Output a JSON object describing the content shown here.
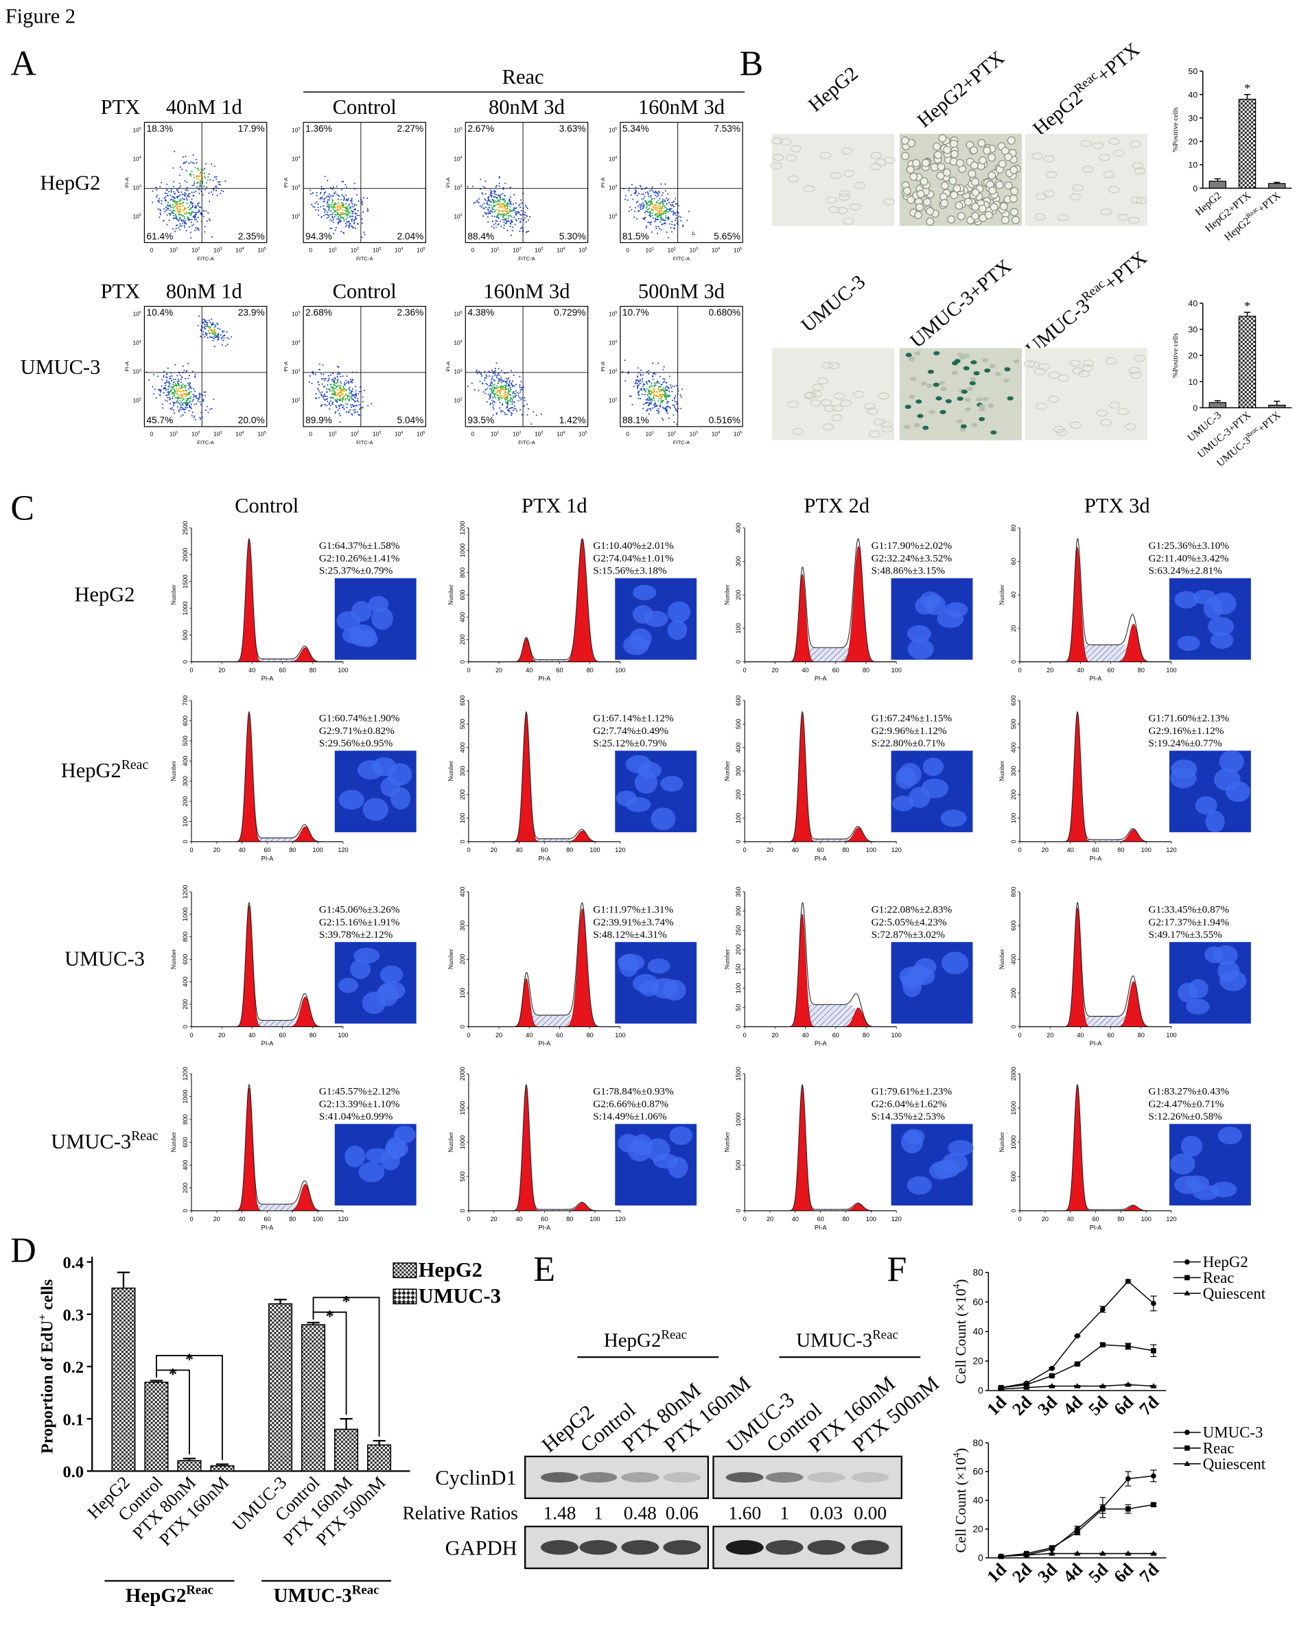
{
  "figure_title": "Figure 2",
  "panel_labels": {
    "a": "A",
    "b": "B",
    "c": "C",
    "d": "D",
    "e": "E",
    "f": "F"
  },
  "panel_a": {
    "group_header": "Reac",
    "axes": {
      "xlabel": "FITC-A",
      "ylabel": "PI-A",
      "xticks": [
        "0",
        [
          "10",
          "1"
        ],
        [
          "10",
          "2"
        ],
        [
          "10",
          "3"
        ],
        [
          "10",
          "4"
        ],
        [
          "10",
          "5"
        ]
      ],
      "yticks": [
        [
          "10",
          "2"
        ],
        [
          "10",
          "3"
        ],
        [
          "10",
          "4"
        ],
        [
          "10",
          "5"
        ]
      ]
    },
    "rows": [
      {
        "label": "HepG2",
        "drug": "PTX",
        "plots": [
          {
            "title": "40nM 1d",
            "quadrants": [
              "18.3%",
              "17.9%",
              "61.4%",
              "2.35%"
            ]
          },
          {
            "title": "Control",
            "quadrants": [
              "1.36%",
              "2.27%",
              "94.3%",
              "2.04%"
            ]
          },
          {
            "title": "80nM 3d",
            "quadrants": [
              "2.67%",
              "3.63%",
              "88.4%",
              "5.30%"
            ]
          },
          {
            "title": "160nM 3d",
            "quadrants": [
              "5.34%",
              "7.53%",
              "81.5%",
              "5.65%"
            ]
          }
        ]
      },
      {
        "label": "UMUC-3",
        "drug": "PTX",
        "plots": [
          {
            "title": "80nM 1d",
            "quadrants": [
              "10.4%",
              "23.9%",
              "45.7%",
              "20.0%"
            ]
          },
          {
            "title": "Control",
            "quadrants": [
              "2.68%",
              "2.36%",
              "89.9%",
              "5.04%"
            ]
          },
          {
            "title": "160nM 3d",
            "quadrants": [
              "4.38%",
              "0.729%",
              "93.5%",
              "1.42%"
            ]
          },
          {
            "title": "500nM 3d",
            "quadrants": [
              "10.7%",
              "0.680%",
              "88.1%",
              "0.516%"
            ]
          }
        ]
      }
    ]
  },
  "panel_b": {
    "rows": [
      [
        "HepG2",
        "HepG2+PTX",
        [
          "HepG2",
          "Reac",
          "+PTX"
        ]
      ],
      [
        "UMUC-3",
        "UMUC-3+PTX",
        [
          "UMUC-3",
          "Reac",
          "+PTX"
        ]
      ]
    ]
  },
  "panel_c": {
    "columns": [
      "Control",
      "PTX 1d",
      "PTX 2d",
      "PTX 3d"
    ],
    "xlabel": "PI-A",
    "ylabel": "Number",
    "rows": [
      {
        "label": "HepG2",
        "xticks": [
          0,
          20,
          40,
          60,
          80,
          100
        ],
        "plots": [
          {
            "yticks": [
              0,
              500,
              1000,
              1500,
              2000,
              2500
            ],
            "stats": [
              "G1:64.37%±1.58%",
              "G2:10.26%±1.41%",
              "S:25.37%±0.79%"
            ]
          },
          {
            "yticks": [
              0,
              200,
              400,
              600,
              800,
              1000,
              1200
            ],
            "stats": [
              "G1:10.40%±2.01%",
              "G2:74.04%±1.01%",
              "S:15.56%±3.18%"
            ]
          },
          {
            "yticks": [
              0,
              100,
              200,
              300,
              400
            ],
            "stats": [
              "G1:17.90%±2.02%",
              "G2:32.24%±3.52%",
              "S:48.86%±3.15%"
            ]
          },
          {
            "yticks": [
              0,
              20,
              40,
              60,
              80
            ],
            "stats": [
              "G1:25.36%±3.10%",
              "G2:11.40%±3.42%",
              "S:63.24%±2.81%"
            ]
          }
        ]
      },
      {
        "label": [
          "HepG2",
          "Reac"
        ],
        "xticks": [
          0,
          20,
          40,
          60,
          80,
          100,
          120
        ],
        "plots": [
          {
            "yticks": [
              0,
              100,
              200,
              300,
              400,
              500,
              600,
              700
            ],
            "stats": [
              "G1:60.74%±1.90%",
              "G2:9.71%±0.82%",
              "S:29.56%±0.95%"
            ]
          },
          {
            "yticks": [
              0,
              100,
              200,
              300,
              400,
              500,
              600
            ],
            "stats": [
              "G1:67.14%±1.12%",
              "G2:7.74%±0.49%",
              "S:25.12%±0.79%"
            ]
          },
          {
            "yticks": [
              0,
              100,
              200,
              300,
              400,
              500,
              600
            ],
            "stats": [
              "G1:67.24%±1.15%",
              "G2:9.96%±1.12%",
              "S:22.80%±0.71%"
            ]
          },
          {
            "yticks": [
              0,
              100,
              200,
              300,
              400,
              500,
              600
            ],
            "stats": [
              "G1:71.60%±2.13%",
              "G2:9.16%±1.12%",
              "S:19.24%±0.77%"
            ]
          }
        ]
      },
      {
        "label": "UMUC-3",
        "xticks": [
          0,
          20,
          40,
          60,
          80,
          100
        ],
        "plots": [
          {
            "yticks": [
              0,
              200,
              400,
              600,
              800,
              1000,
              1200
            ],
            "stats": [
              "G1:45.06%±3.26%",
              "G2:15.16%±1.91%",
              "S:39.78%±2.12%"
            ]
          },
          {
            "yticks": [
              0,
              100,
              200,
              300,
              400
            ],
            "stats": [
              "G1:11.97%±1.31%",
              "G2:39.91%±3.74%",
              "S:48.12%±4.31%"
            ]
          },
          {
            "yticks": [
              0,
              50,
              100,
              150,
              200,
              250,
              300,
              350
            ],
            "stats": [
              "G1:22.08%±2.83%",
              "G2:5.05%±4.23%",
              "S:72.87%±3.02%"
            ]
          },
          {
            "yticks": [
              0,
              200,
              400,
              600,
              800
            ],
            "stats": [
              "G1:33.45%±0.87%",
              "G2:17.37%±1.94%",
              "S:49.17%±3.55%"
            ]
          }
        ]
      },
      {
        "label": [
          "UMUC-3",
          "Reac"
        ],
        "xticks": [
          0,
          20,
          40,
          60,
          80,
          100,
          120
        ],
        "plots": [
          {
            "yticks": [
              0,
              200,
              400,
              600,
              800,
              1000,
              1200
            ],
            "stats": [
              "G1:45.57%±2.12%",
              "G2:13.39%±1.10%",
              "S:41.04%±0.99%"
            ]
          },
          {
            "yticks": [
              0,
              500,
              1000,
              1500,
              2000
            ],
            "stats": [
              "G1:78.84%±0.93%",
              "G2:6.66%±0.87%",
              "S:14.49%±1.06%"
            ]
          },
          {
            "yticks": [
              0,
              500,
              1000,
              1500
            ],
            "stats": [
              "G1:79.61%±1.23%",
              "G2:6.04%±1.62%",
              "S:14.35%±2.53%"
            ]
          },
          {
            "yticks": [
              0,
              500,
              1000,
              1500,
              2000
            ],
            "stats": [
              "G1:83.27%±0.43%",
              "G2:4.47%±0.71%",
              "S:12.26%±0.58%"
            ]
          }
        ]
      }
    ]
  },
  "panel_e": {
    "bands": [
      "CyclinD1",
      "GAPDH"
    ],
    "ratio_label": "Relative Ratios",
    "groups": [
      {
        "label": [
          "HepG2",
          "Reac"
        ],
        "lanes": [
          "HepG2",
          "Control",
          "PTX 80nM",
          "PTX 160nM"
        ],
        "ratios": [
          "1.48",
          "1",
          "0.48",
          "0.06"
        ]
      },
      {
        "label": [
          "UMUC-3",
          "Reac"
        ],
        "lanes": [
          "UMUC-3",
          "Control",
          "PTX 160nM",
          "PTX 500nM"
        ],
        "ratios": [
          "1.60",
          "1",
          "0.03",
          "0.00"
        ]
      }
    ]
  },
  "chart_data": [
    {
      "type": "bar",
      "ylabel": "%Positive cells",
      "color": "#7a7a7a",
      "annotation": "*",
      "categories": [
        "HepG2",
        "HepG2+PTX",
        [
          "HepG2",
          "Reac",
          "+PTX"
        ]
      ],
      "values": [
        3,
        38,
        2
      ],
      "errors": [
        1,
        2,
        0.5
      ],
      "ylim": [
        0,
        50
      ],
      "yticks": [
        0,
        10,
        20,
        30,
        40,
        50
      ]
    },
    {
      "type": "bar",
      "ylabel": "%Positive cells",
      "color": "#7a7a7a",
      "annotation": "*",
      "categories": [
        "UMUC-3",
        "UMUC-3+PTX",
        [
          "UMUC-3",
          "Reac",
          "+PTX"
        ]
      ],
      "values": [
        2,
        35,
        1
      ],
      "errors": [
        0.7,
        1.5,
        1.5
      ],
      "ylim": [
        0,
        40
      ],
      "yticks": [
        0,
        10,
        20,
        30,
        40
      ]
    },
    {
      "type": "bar",
      "ylabel": [
        "Proportion of EdU",
        "+",
        " cells"
      ],
      "annotation": "*",
      "ylim": [
        0,
        0.4
      ],
      "yticks": [
        {
          "value": 0,
          "label": "0.0"
        },
        0.1,
        0.2,
        0.3,
        0.4
      ],
      "series": [
        {
          "name": "HepG2",
          "group": [
            "HepG2",
            "Reac"
          ],
          "categories": [
            "HepG2",
            "Control",
            "PTX 80nM",
            "PTX 160nM"
          ],
          "values": [
            0.35,
            0.17,
            0.02,
            0.01
          ],
          "errors": [
            0.03,
            0.003,
            0.004,
            0.003
          ]
        },
        {
          "name": "UMUC-3",
          "group": [
            "UMUC-3",
            "Reac"
          ],
          "categories": [
            "UMUC-3",
            "Control",
            "PTX 160nM",
            "PTX 500nM"
          ],
          "values": [
            0.32,
            0.28,
            0.08,
            0.05
          ],
          "errors": [
            0.008,
            0.004,
            0.02,
            0.008
          ]
        }
      ]
    },
    {
      "type": "line",
      "ylabel": [
        "Cell Count (×10",
        "4",
        ")"
      ],
      "categories": [
        "1d",
        "2d",
        "3d",
        "4d",
        "5d",
        "6d",
        "7d"
      ],
      "ylim": [
        0,
        80
      ],
      "yticks": [
        0,
        20,
        40,
        60,
        80
      ],
      "series": [
        {
          "name": "HepG2",
          "marker": "circle",
          "values": [
            2,
            5,
            15,
            37,
            55,
            74,
            59
          ],
          "errors": [
            0.5,
            0.5,
            0.5,
            0.5,
            2,
            1,
            5
          ]
        },
        {
          "name": "Reac",
          "marker": "square",
          "values": [
            2,
            4,
            10,
            18,
            31,
            30,
            27
          ],
          "errors": [
            0.5,
            0.5,
            0.5,
            0.5,
            1,
            2,
            4
          ]
        },
        {
          "name": "Quiescent",
          "marker": "triangle",
          "values": [
            1,
            2,
            3,
            3,
            3,
            4,
            3
          ],
          "errors": [
            0.3,
            0.3,
            0.5,
            0.5,
            0.5,
            0.5,
            0.5
          ]
        }
      ]
    },
    {
      "type": "line",
      "ylabel": [
        "Cell Count (×10",
        "4",
        ")"
      ],
      "categories": [
        "1d",
        "2d",
        "3d",
        "4d",
        "5d",
        "6d",
        "7d"
      ],
      "ylim": [
        0,
        80
      ],
      "yticks": [
        0,
        20,
        40,
        60,
        80
      ],
      "series": [
        {
          "name": "UMUC-3",
          "marker": "circle",
          "values": [
            1,
            2,
            6,
            20,
            35,
            55,
            57
          ],
          "errors": [
            0.3,
            0.5,
            0.5,
            2,
            7,
            5,
            4
          ]
        },
        {
          "name": "Reac",
          "marker": "square",
          "values": [
            1,
            3,
            7,
            18,
            34,
            34,
            37
          ],
          "errors": [
            0.3,
            0.5,
            0.5,
            2,
            3,
            3,
            1
          ]
        },
        {
          "name": "Quiescent",
          "marker": "triangle",
          "values": [
            1,
            2,
            3,
            3,
            3,
            3,
            3
          ],
          "errors": [
            0.3,
            0.3,
            0.3,
            0.3,
            0.3,
            0.3,
            0.3
          ]
        }
      ]
    }
  ]
}
